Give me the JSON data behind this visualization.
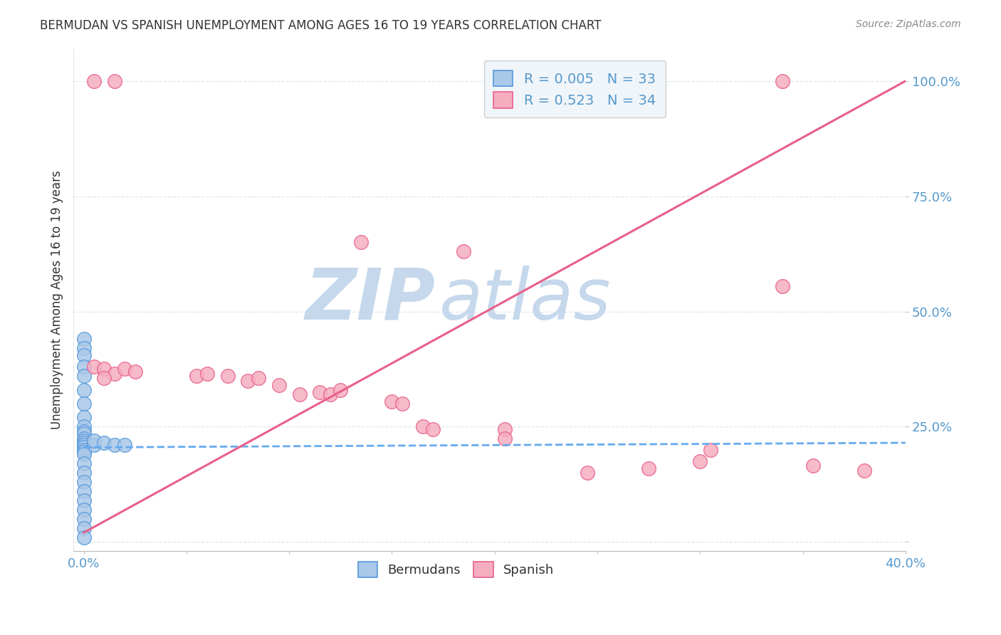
{
  "title": "BERMUDAN VS SPANISH UNEMPLOYMENT AMONG AGES 16 TO 19 YEARS CORRELATION CHART",
  "source": "Source: ZipAtlas.com",
  "xlabel_label": "Bermudans",
  "ylabel_label": "Spanish",
  "ylabel": "Unemployment Among Ages 16 to 19 years",
  "xlim": [
    -0.5,
    40.0
  ],
  "ylim": [
    -2.0,
    107.0
  ],
  "xticks": [
    0.0,
    5.0,
    10.0,
    15.0,
    20.0,
    25.0,
    30.0,
    35.0,
    40.0
  ],
  "yticks": [
    0.0,
    25.0,
    50.0,
    75.0,
    100.0
  ],
  "blue_R": "0.005",
  "blue_N": "33",
  "pink_R": "0.523",
  "pink_N": "34",
  "blue_color": "#aac8e8",
  "pink_color": "#f5aec0",
  "blue_edge_color": "#5599dd",
  "pink_edge_color": "#e8608a",
  "blue_line_color": "#66aaee",
  "pink_line_color": "#e8608a",
  "blue_scatter": [
    [
      0.0,
      44.0
    ],
    [
      0.0,
      42.0
    ],
    [
      0.0,
      40.5
    ],
    [
      0.0,
      38.0
    ],
    [
      0.0,
      36.0
    ],
    [
      0.0,
      33.0
    ],
    [
      0.0,
      30.0
    ],
    [
      0.0,
      27.0
    ],
    [
      0.0,
      25.0
    ],
    [
      0.0,
      24.0
    ],
    [
      0.0,
      23.5
    ],
    [
      0.0,
      22.5
    ],
    [
      0.0,
      22.0
    ],
    [
      0.0,
      21.5
    ],
    [
      0.0,
      21.0
    ],
    [
      0.0,
      20.5
    ],
    [
      0.0,
      20.0
    ],
    [
      0.0,
      19.5
    ],
    [
      0.0,
      19.0
    ],
    [
      0.0,
      17.0
    ],
    [
      0.0,
      15.0
    ],
    [
      0.0,
      13.0
    ],
    [
      0.0,
      11.0
    ],
    [
      0.0,
      9.0
    ],
    [
      0.0,
      7.0
    ],
    [
      0.0,
      5.0
    ],
    [
      0.0,
      3.0
    ],
    [
      0.0,
      1.0
    ],
    [
      0.5,
      21.0
    ],
    [
      0.5,
      22.0
    ],
    [
      1.0,
      21.5
    ],
    [
      1.5,
      21.0
    ],
    [
      2.0,
      21.0
    ]
  ],
  "pink_scatter": [
    [
      0.5,
      100.0
    ],
    [
      1.5,
      100.0
    ],
    [
      34.0,
      100.0
    ],
    [
      13.5,
      65.0
    ],
    [
      18.5,
      63.0
    ],
    [
      34.0,
      55.5
    ],
    [
      0.5,
      38.0
    ],
    [
      1.0,
      37.5
    ],
    [
      1.5,
      36.5
    ],
    [
      1.0,
      35.5
    ],
    [
      2.0,
      37.5
    ],
    [
      2.5,
      37.0
    ],
    [
      5.5,
      36.0
    ],
    [
      6.0,
      36.5
    ],
    [
      7.0,
      36.0
    ],
    [
      8.0,
      35.0
    ],
    [
      8.5,
      35.5
    ],
    [
      9.5,
      34.0
    ],
    [
      10.5,
      32.0
    ],
    [
      11.5,
      32.5
    ],
    [
      12.0,
      32.0
    ],
    [
      12.5,
      33.0
    ],
    [
      15.0,
      30.5
    ],
    [
      15.5,
      30.0
    ],
    [
      16.5,
      25.0
    ],
    [
      17.0,
      24.5
    ],
    [
      20.5,
      24.5
    ],
    [
      20.5,
      22.5
    ],
    [
      24.5,
      15.0
    ],
    [
      27.5,
      16.0
    ],
    [
      30.0,
      17.5
    ],
    [
      30.5,
      20.0
    ],
    [
      35.5,
      16.5
    ],
    [
      38.0,
      15.5
    ]
  ],
  "blue_trend": [
    0.0,
    40.0,
    20.5,
    21.5
  ],
  "pink_trend": [
    0.0,
    40.0,
    2.0,
    100.0
  ],
  "watermark_zip": "ZIP",
  "watermark_atlas": "atlas",
  "watermark_color": "#c5d8ec",
  "background_color": "#ffffff",
  "grid_color": "#dde8f0",
  "axis_label_color": "#5599cc",
  "title_color": "#333333",
  "legend_box_color": "#f0f5fa"
}
